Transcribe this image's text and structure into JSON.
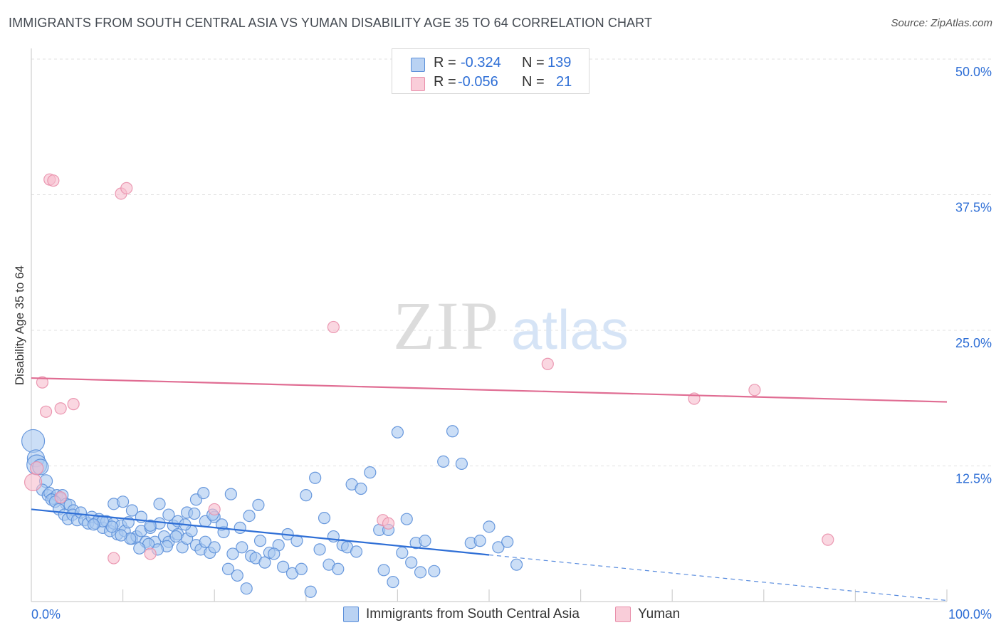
{
  "chart_data": {
    "type": "scatter",
    "title": "IMMIGRANTS FROM SOUTH CENTRAL ASIA VS YUMAN DISABILITY AGE 35 TO 64 CORRELATION CHART",
    "source": "Source: ZipAtlas.com",
    "xlabel": "",
    "ylabel": "Disability Age 35 to 64",
    "xlim": [
      0,
      100
    ],
    "ylim": [
      0,
      50
    ],
    "x_tick_labels": [
      "0.0%",
      "100.0%"
    ],
    "y_ticks": [
      12.5,
      25.0,
      37.5,
      50.0
    ],
    "y_tick_labels": [
      "12.5%",
      "25.0%",
      "37.5%",
      "50.0%"
    ],
    "watermark": {
      "part1": "ZIP",
      "part2": "atlas"
    },
    "grid": "horizontal dashed",
    "colors": {
      "blue_fill": "#a9c8f0",
      "blue_stroke": "#5b8fd9",
      "blue_line": "#2f6fd6",
      "pink_fill": "#f7bccd",
      "pink_stroke": "#e98fab",
      "pink_line": "#e06d93",
      "tick_label": "#2f6fd6"
    },
    "stats_legend": [
      {
        "series": "Immigrants from South Central Asia",
        "r_label": "R =",
        "r": "-0.324",
        "n_label": "N =",
        "n": "139"
      },
      {
        "series": "Yuman",
        "r_label": "R =",
        "r": "-0.056",
        "n_label": "N =",
        "n": "21"
      }
    ],
    "series": [
      {
        "name": "Immigrants from South Central Asia",
        "color": "blue",
        "trend": {
          "x0": 0,
          "y0": 8.5,
          "x1": 50,
          "y1": 4.3,
          "dash_to_x": 100,
          "dash_to_y": 0.1
        },
        "points": [
          [
            0.2,
            14.8,
            16
          ],
          [
            0.5,
            13.2,
            12
          ],
          [
            0.6,
            12.6,
            14
          ],
          [
            1.0,
            12.4,
            11
          ],
          [
            1.6,
            11.1,
            9
          ],
          [
            1.2,
            10.3,
            8
          ],
          [
            1.8,
            9.8,
            8
          ],
          [
            2.0,
            10.0,
            8
          ],
          [
            2.4,
            9.5,
            8
          ],
          [
            2.8,
            9.8,
            8
          ],
          [
            3.2,
            9.5,
            8
          ],
          [
            3.4,
            9.8,
            8
          ],
          [
            3.8,
            9.0,
            8
          ],
          [
            4.2,
            8.9,
            8
          ],
          [
            4.6,
            8.4,
            8
          ],
          [
            2.2,
            9.4,
            8
          ],
          [
            2.6,
            9.2,
            8
          ],
          [
            3.0,
            8.5,
            8
          ],
          [
            3.6,
            8.0,
            8
          ],
          [
            4.0,
            7.6,
            8
          ],
          [
            4.5,
            8.0,
            8
          ],
          [
            5.0,
            7.5,
            8
          ],
          [
            5.4,
            8.2,
            8
          ],
          [
            5.8,
            7.5,
            8
          ],
          [
            6.2,
            7.2,
            8
          ],
          [
            6.6,
            7.8,
            8
          ],
          [
            7.0,
            7.2,
            8
          ],
          [
            7.4,
            7.6,
            8
          ],
          [
            7.8,
            6.8,
            8
          ],
          [
            8.2,
            7.4,
            8
          ],
          [
            8.6,
            6.5,
            8
          ],
          [
            9.0,
            7.2,
            8
          ],
          [
            9.4,
            6.2,
            8
          ],
          [
            9.8,
            7.0,
            8
          ],
          [
            10.2,
            6.5,
            8
          ],
          [
            10.6,
            7.3,
            8
          ],
          [
            11.0,
            5.8,
            8
          ],
          [
            11.5,
            6.0,
            8
          ],
          [
            12.0,
            6.5,
            8
          ],
          [
            12.5,
            5.5,
            8
          ],
          [
            13.0,
            6.8,
            8
          ],
          [
            13.5,
            5.5,
            8
          ],
          [
            14.0,
            7.2,
            8
          ],
          [
            14.5,
            6.0,
            8
          ],
          [
            15.0,
            5.5,
            8
          ],
          [
            15.5,
            7.0,
            8
          ],
          [
            16.0,
            6.2,
            8
          ],
          [
            16.5,
            5.0,
            8
          ],
          [
            17.0,
            5.8,
            8
          ],
          [
            17.5,
            6.5,
            8
          ],
          [
            18.0,
            5.2,
            8
          ],
          [
            18.5,
            4.8,
            8
          ],
          [
            19.0,
            5.5,
            8
          ],
          [
            19.5,
            4.5,
            8
          ],
          [
            20.0,
            5.0,
            8
          ],
          [
            9.0,
            9.0,
            8
          ],
          [
            10.0,
            9.2,
            8
          ],
          [
            11.0,
            8.4,
            8
          ],
          [
            12.0,
            7.8,
            8
          ],
          [
            13.0,
            7.0,
            8
          ],
          [
            14.0,
            9.0,
            8
          ],
          [
            15.0,
            8.0,
            8
          ],
          [
            16.0,
            7.4,
            8
          ],
          [
            17.0,
            8.2,
            8
          ],
          [
            18.0,
            9.4,
            8
          ],
          [
            19.0,
            7.4,
            8
          ],
          [
            20.0,
            7.8,
            8
          ],
          [
            21.0,
            6.4,
            8
          ],
          [
            22.0,
            4.4,
            8
          ],
          [
            23.0,
            5.0,
            8
          ],
          [
            24.0,
            4.2,
            8
          ],
          [
            25.0,
            5.6,
            8
          ],
          [
            26.0,
            4.5,
            8
          ],
          [
            27.0,
            5.2,
            8
          ],
          [
            28.0,
            6.2,
            8
          ],
          [
            29.0,
            5.6,
            8
          ],
          [
            30.0,
            9.8,
            8
          ],
          [
            31.0,
            11.4,
            8
          ],
          [
            32.0,
            7.7,
            8
          ],
          [
            33.0,
            6.0,
            8
          ],
          [
            34.0,
            5.2,
            8
          ],
          [
            35.0,
            10.8,
            8
          ],
          [
            36.0,
            10.4,
            8
          ],
          [
            37.0,
            11.9,
            8
          ],
          [
            38.0,
            6.6,
            8
          ],
          [
            39.0,
            6.6,
            8
          ],
          [
            40.0,
            15.6,
            8
          ],
          [
            41.0,
            7.6,
            8
          ],
          [
            42.0,
            5.4,
            8
          ],
          [
            43.0,
            5.6,
            8
          ],
          [
            44.0,
            2.8,
            8
          ],
          [
            45.0,
            12.9,
            8
          ],
          [
            46.0,
            15.7,
            8
          ],
          [
            47.0,
            12.7,
            8
          ],
          [
            48.0,
            5.4,
            8
          ],
          [
            49.0,
            5.6,
            8
          ],
          [
            50.0,
            6.9,
            8
          ],
          [
            51.0,
            5.0,
            8
          ],
          [
            52.0,
            5.5,
            8
          ],
          [
            53.0,
            3.4,
            8
          ],
          [
            21.5,
            3.0,
            8
          ],
          [
            22.5,
            2.4,
            8
          ],
          [
            23.5,
            1.2,
            8
          ],
          [
            24.5,
            4.0,
            8
          ],
          [
            25.5,
            3.6,
            8
          ],
          [
            26.5,
            4.4,
            8
          ],
          [
            27.5,
            3.2,
            8
          ],
          [
            28.5,
            2.6,
            8
          ],
          [
            29.5,
            3.0,
            8
          ],
          [
            30.5,
            0.9,
            8
          ],
          [
            31.5,
            4.8,
            8
          ],
          [
            32.5,
            3.4,
            8
          ],
          [
            33.5,
            3.0,
            8
          ],
          [
            34.5,
            5.0,
            8
          ],
          [
            35.5,
            4.6,
            8
          ],
          [
            38.5,
            2.9,
            8
          ],
          [
            39.5,
            1.8,
            8
          ],
          [
            40.5,
            4.5,
            8
          ],
          [
            41.5,
            3.6,
            8
          ],
          [
            42.5,
            2.7,
            8
          ],
          [
            24.8,
            8.9,
            8
          ],
          [
            23.8,
            7.9,
            8
          ],
          [
            22.8,
            6.8,
            8
          ],
          [
            21.8,
            9.9,
            8
          ],
          [
            20.8,
            7.1,
            8
          ],
          [
            19.8,
            8.0,
            8
          ],
          [
            18.8,
            10.0,
            8
          ],
          [
            17.8,
            8.1,
            8
          ],
          [
            16.8,
            7.1,
            8
          ],
          [
            15.8,
            6.0,
            8
          ],
          [
            14.8,
            5.1,
            8
          ],
          [
            13.8,
            4.8,
            8
          ],
          [
            12.8,
            5.3,
            8
          ],
          [
            11.8,
            4.9,
            8
          ],
          [
            10.8,
            5.8,
            8
          ],
          [
            9.8,
            6.1,
            8
          ],
          [
            8.8,
            6.9,
            8
          ],
          [
            7.8,
            7.4,
            8
          ],
          [
            6.8,
            7.1,
            8
          ]
        ]
      },
      {
        "name": "Yuman",
        "color": "pink",
        "trend": {
          "x0": 0,
          "y0": 20.6,
          "x1": 100,
          "y1": 18.4
        },
        "points": [
          [
            0.2,
            11.0,
            12
          ],
          [
            0.6,
            12.3,
            9
          ],
          [
            2.0,
            38.9,
            8
          ],
          [
            2.4,
            38.8,
            8
          ],
          [
            9.8,
            37.6,
            8
          ],
          [
            10.4,
            38.1,
            8
          ],
          [
            1.2,
            20.2,
            8
          ],
          [
            1.6,
            17.5,
            8
          ],
          [
            3.2,
            17.8,
            8
          ],
          [
            4.6,
            18.2,
            8
          ],
          [
            3.2,
            9.6,
            8
          ],
          [
            9.0,
            4.0,
            8
          ],
          [
            13.0,
            4.4,
            8
          ],
          [
            20.0,
            8.5,
            8
          ],
          [
            33.0,
            25.3,
            8
          ],
          [
            38.4,
            7.5,
            8
          ],
          [
            56.4,
            21.9,
            8
          ],
          [
            72.4,
            18.7,
            8
          ],
          [
            79.0,
            19.5,
            8
          ],
          [
            87.0,
            5.7,
            8
          ],
          [
            39.0,
            7.2,
            8
          ]
        ]
      }
    ]
  }
}
